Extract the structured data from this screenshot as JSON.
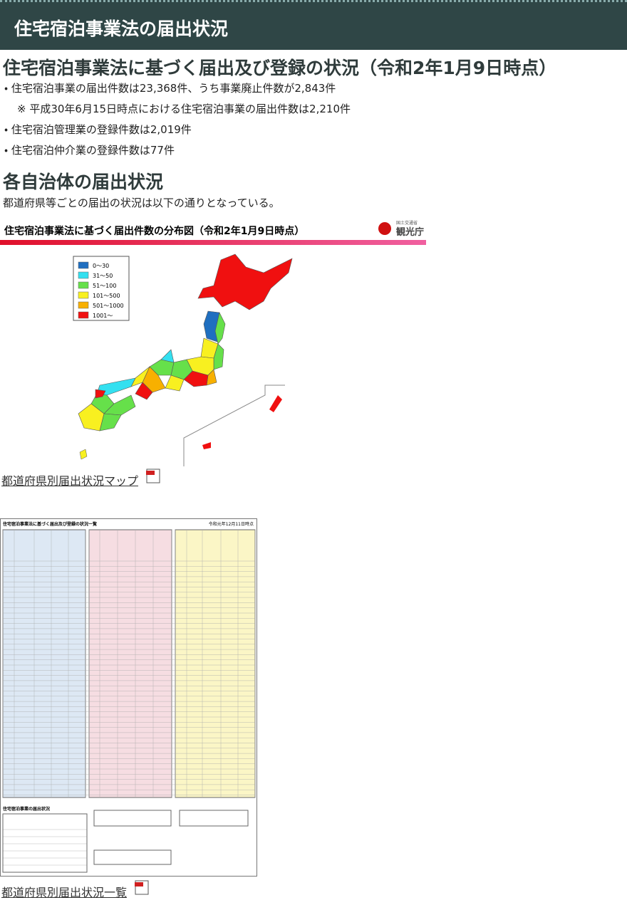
{
  "header": {
    "title": "住宅宿泊事業法の届出状況"
  },
  "status": {
    "heading": "住宅宿泊事業法に基づく届出及び登録の状況（令和2年1月9日時点）",
    "items": [
      "・ 住宅宿泊事業の届出件数は23,368件、うち事業廃止件数が2,843件",
      "※ 平成30年6月15日時点における住宅宿泊事業の届出件数は2,210件",
      "・ 住宅宿泊管理業の登録件数は2,019件",
      "・ 住宅宿泊仲介業の登録件数は77件"
    ]
  },
  "local": {
    "heading": "各自治体の届出状況",
    "text": "都道府県等ごとの届出の状況は以下の通りとなっている。"
  },
  "map": {
    "title": "住宅宿泊事業法に基づく届出件数の分布図（令和2年1月9日時点）",
    "ministry": "国土交通省",
    "agency": "観光庁",
    "legend": [
      {
        "label": "0～30",
        "color": "#1f6fc0"
      },
      {
        "label": "31～50",
        "color": "#33e0f0"
      },
      {
        "label": "51～100",
        "color": "#66e04a"
      },
      {
        "label": "101～500",
        "color": "#f8f020"
      },
      {
        "label": "501～1000",
        "color": "#f8b000"
      },
      {
        "label": "1001～",
        "color": "#f01010"
      }
    ],
    "link": "都道府県別届出状況マップ"
  },
  "list": {
    "title": "住宅宿泊事業法に基づく届出及び登録の状況一覧",
    "date": "令和元年12月11日時点",
    "summary": "住宅宿泊事業の届出状況",
    "link": "都道府県別届出状況一覧"
  }
}
